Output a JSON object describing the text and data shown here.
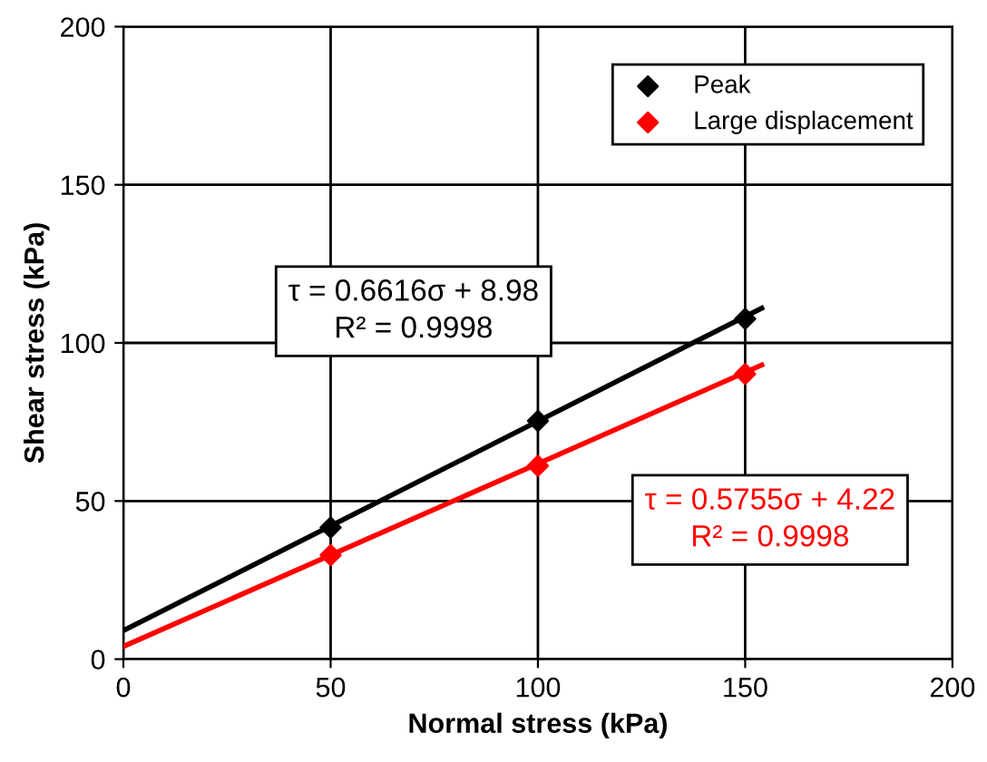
{
  "chart_data": {
    "type": "scatter",
    "xlabel": "Normal stress (kPa)",
    "ylabel": "Shear stress (kPa)",
    "xlim": [
      0,
      200
    ],
    "ylim": [
      0,
      200
    ],
    "xticks": [
      0,
      50,
      100,
      150,
      200
    ],
    "yticks": [
      0,
      50,
      100,
      150,
      200
    ],
    "grid": true,
    "legend": "top right",
    "marker": "diamond",
    "series": [
      {
        "name": "Peak",
        "color": "#000000",
        "x": [
          50,
          100,
          150
        ],
        "values": [
          41.6,
          75.3,
          107.6
        ]
      },
      {
        "name": "Large displacement",
        "color": "#ff0000",
        "x": [
          50,
          100,
          150
        ],
        "values": [
          32.9,
          61.1,
          90.2
        ]
      },
      {
        "type": "line",
        "color": "#000000",
        "x": [
          0,
          154
        ],
        "values": [
          9,
          111
        ],
        "marker": "none"
      },
      {
        "type": "line",
        "color": "#ff0000",
        "x": [
          0,
          154
        ],
        "values": [
          4,
          93
        ],
        "marker": "none"
      }
    ],
    "annotations": [
      "τ = 0.6616σ + 8.98\nR² = 0.9998",
      "τ = 0.5755σ + 4.22\nR² = 0.9998"
    ]
  }
}
